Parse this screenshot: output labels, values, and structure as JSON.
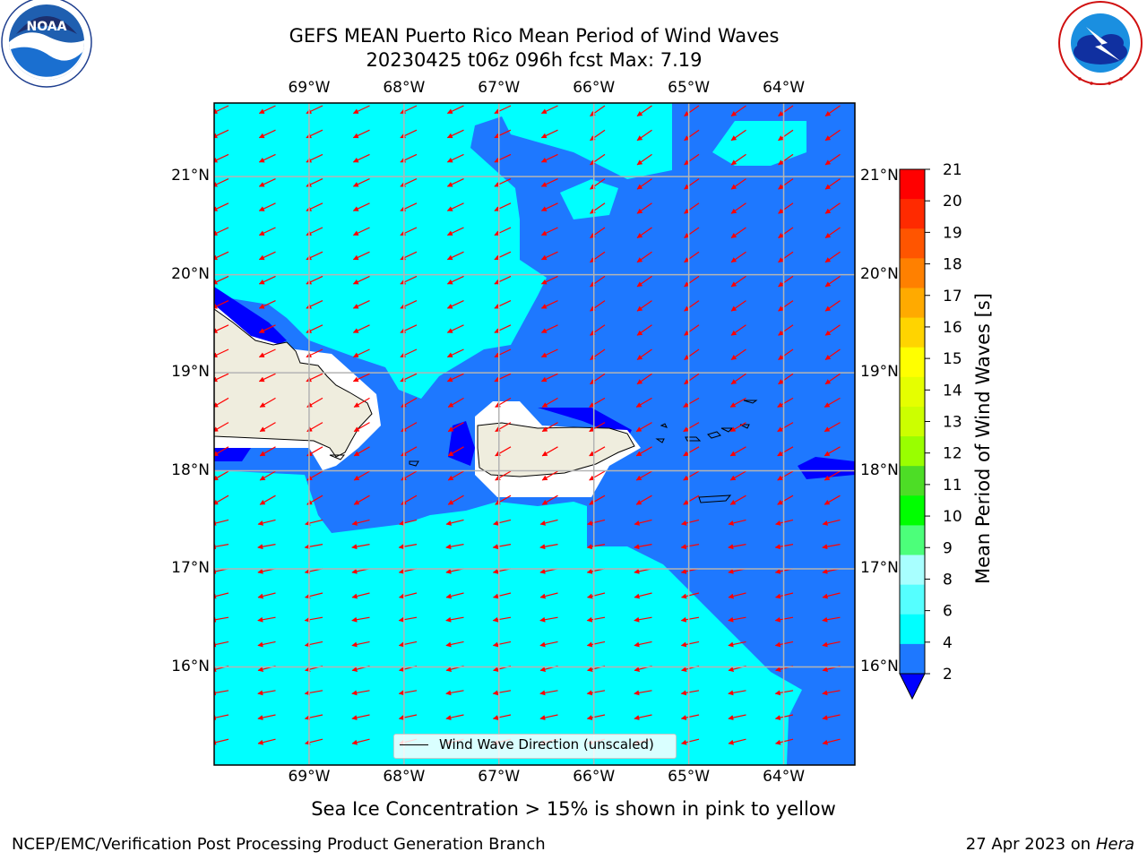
{
  "title": {
    "line1": "GEFS MEAN Puerto Rico Mean Period of Wind Waves",
    "line2": "20230425 t06z 096h fcst   Max: 7.19"
  },
  "logos": {
    "noaa_text": "NOAA",
    "noaa_ring": "NATIONAL OCEANIC AND ATMOSPHERIC ADMINISTRATION · U.S. DEPARTMENT OF COMMERCE",
    "nws_ring": "NATIONAL WEATHER SERVICE"
  },
  "map": {
    "lon_labels": [
      "69°W",
      "68°W",
      "67°W",
      "66°W",
      "65°W",
      "64°W"
    ],
    "lat_labels": [
      "21°N",
      "20°N",
      "19°N",
      "18°N",
      "17°N",
      "16°N"
    ],
    "lon_range": [
      -70.0,
      -63.25
    ],
    "lat_range": [
      15.0,
      21.75
    ],
    "colors": {
      "band_2_4": "#1e78ff",
      "band_4_6": "#00ffff",
      "below_2": "#0000ff",
      "land": "#efedde",
      "masked": "#ffffff",
      "arrow": "#ff0000",
      "grid": "#b4b4b4"
    }
  },
  "colorbar": {
    "title": "Mean Period of Wind Waves [s]",
    "ticks": [
      "21",
      "20",
      "19",
      "18",
      "17",
      "16",
      "15",
      "14",
      "13",
      "12",
      "11",
      "10",
      "9",
      "8",
      "6",
      "4",
      "2"
    ],
    "colors": [
      "#ff0000",
      "#ff2a00",
      "#ff5500",
      "#ff8000",
      "#ffaa00",
      "#ffd400",
      "#ffff00",
      "#e5ff00",
      "#ccff00",
      "#99ff00",
      "#4ddd26",
      "#00ff00",
      "#4cff7a",
      "#a8ffff",
      "#55ffff",
      "#00ffff",
      "#1e78ff"
    ],
    "under_color": "#0000ff"
  },
  "legend": {
    "label": "Wind Wave Direction (unscaled)"
  },
  "notes": {
    "sea_ice": "Sea Ice Concentration > 15% is shown in pink to yellow"
  },
  "footer": {
    "left": "NCEP/EMC/Verification Post Processing Product Generation Branch",
    "right_date": "27 Apr 2023 on",
    "right_host": "Hera"
  }
}
